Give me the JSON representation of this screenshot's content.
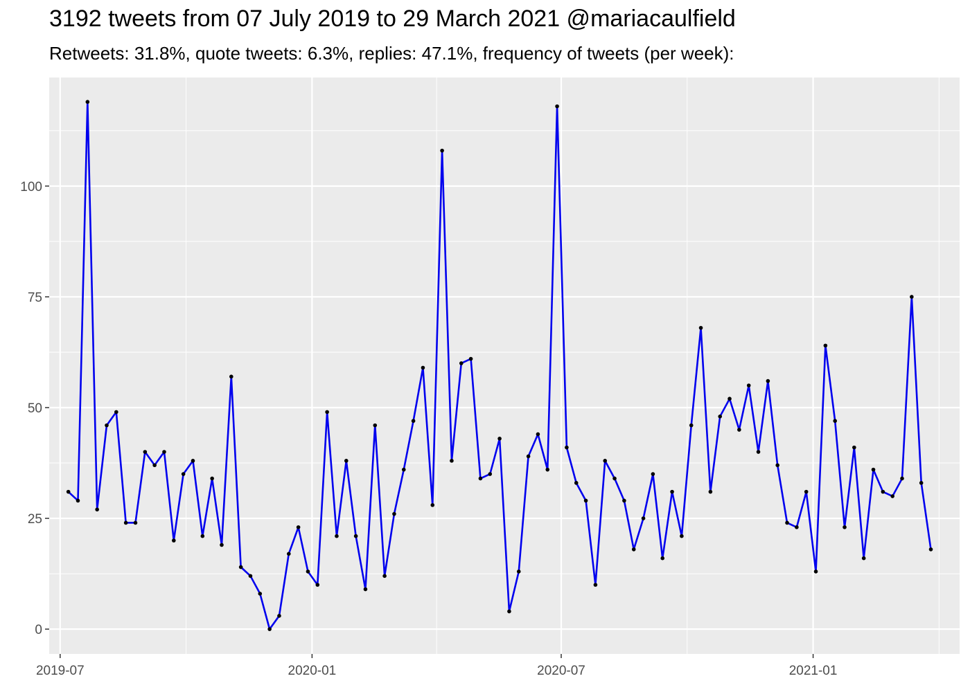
{
  "title": "3192 tweets from 07 July 2019 to 29 March 2021 @mariacaulfield",
  "subtitle": "Retweets: 31.8%, quote tweets: 6.3%, replies: 47.1%, frequency of tweets (per week):",
  "chart_data": {
    "type": "line",
    "title": "3192 tweets from 07 July 2019 to 29 March 2021 @mariacaulfield",
    "subtitle": "Retweets: 31.8%, quote tweets: 6.3%, replies: 47.1%, frequency of tweets (per week):",
    "xlabel": "",
    "ylabel": "",
    "x_axis": {
      "type": "date",
      "range": [
        "2019-06-23",
        "2021-04-18"
      ],
      "ticks": [
        "2019-07-01",
        "2020-01-01",
        "2020-07-01",
        "2021-01-01"
      ],
      "tick_labels": [
        "2019-07",
        "2020-01",
        "2020-07",
        "2021-01"
      ]
    },
    "y_axis": {
      "range": [
        -5.6,
        124.5
      ],
      "ticks": [
        0,
        25,
        50,
        75,
        100
      ],
      "tick_labels": [
        "0",
        "25",
        "50",
        "75",
        "100"
      ]
    },
    "grid": true,
    "background": "#ebebeb",
    "line_color": "#0000ee",
    "point_color": "#000000",
    "series": [
      {
        "x": [
          "2019-07-07",
          "2019-07-14",
          "2019-07-21",
          "2019-07-28",
          "2019-08-04",
          "2019-08-11",
          "2019-08-18",
          "2019-08-25",
          "2019-09-01",
          "2019-09-08",
          "2019-09-15",
          "2019-09-22",
          "2019-09-29",
          "2019-10-06",
          "2019-10-13",
          "2019-10-20",
          "2019-10-27",
          "2019-11-03",
          "2019-11-10",
          "2019-11-17",
          "2019-11-24",
          "2019-12-01",
          "2019-12-08",
          "2019-12-15",
          "2019-12-22",
          "2019-12-29",
          "2020-01-05",
          "2020-01-12",
          "2020-01-19",
          "2020-01-26",
          "2020-02-02",
          "2020-02-09",
          "2020-02-16",
          "2020-02-23",
          "2020-03-01",
          "2020-03-08",
          "2020-03-15",
          "2020-03-22",
          "2020-03-29",
          "2020-04-05",
          "2020-04-12",
          "2020-04-19",
          "2020-04-26",
          "2020-05-03",
          "2020-05-10",
          "2020-05-17",
          "2020-05-24",
          "2020-05-31",
          "2020-06-07",
          "2020-06-14",
          "2020-06-21",
          "2020-06-28",
          "2020-07-05",
          "2020-07-12",
          "2020-07-19",
          "2020-07-26",
          "2020-08-02",
          "2020-08-09",
          "2020-08-16",
          "2020-08-23",
          "2020-08-30",
          "2020-09-06",
          "2020-09-13",
          "2020-09-20",
          "2020-09-27",
          "2020-10-04",
          "2020-10-11",
          "2020-10-18",
          "2020-10-25",
          "2020-11-01",
          "2020-11-08",
          "2020-11-15",
          "2020-11-22",
          "2020-11-29",
          "2020-12-06",
          "2020-12-13",
          "2020-12-20",
          "2020-12-27",
          "2021-01-03",
          "2021-01-10",
          "2021-01-17",
          "2021-01-24",
          "2021-01-31",
          "2021-02-07",
          "2021-02-14",
          "2021-02-21",
          "2021-02-28",
          "2021-03-07",
          "2021-03-14",
          "2021-03-21",
          "2021-03-28"
        ],
        "y": [
          31,
          29,
          119,
          27,
          46,
          49,
          24,
          24,
          40,
          37,
          40,
          20,
          35,
          38,
          21,
          34,
          19,
          57,
          14,
          12,
          8,
          0,
          3,
          17,
          23,
          13,
          10,
          49,
          21,
          38,
          21,
          9,
          46,
          12,
          26,
          36,
          47,
          59,
          28,
          108,
          38,
          60,
          61,
          34,
          35,
          43,
          4,
          13,
          39,
          44,
          36,
          118,
          41,
          33,
          29,
          10,
          38,
          34,
          29,
          18,
          25,
          35,
          16,
          31,
          21,
          46,
          68,
          31,
          48,
          52,
          45,
          55,
          40,
          56,
          37,
          24,
          23,
          31,
          13,
          64,
          47,
          23,
          41,
          16,
          36,
          31,
          30,
          34,
          75,
          33,
          18
        ]
      }
    ]
  }
}
